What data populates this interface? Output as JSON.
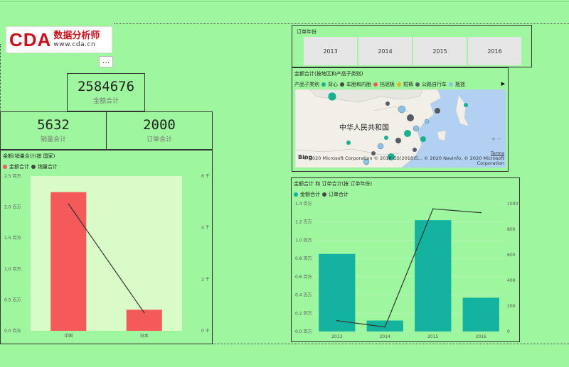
{
  "logo": {
    "brand": "CDA",
    "cn": "数据分析师",
    "url": "www.cda.cn"
  },
  "more_button": "...",
  "cards": {
    "total_amount": {
      "value": "2584676",
      "label": "金额合计"
    },
    "total_sales": {
      "value": "5632",
      "label": "销量合计"
    },
    "total_orders": {
      "value": "2000",
      "label": "订单合计"
    }
  },
  "slicer": {
    "title": "订单年份",
    "years": [
      "2013",
      "2014",
      "2015",
      "2016"
    ]
  },
  "map_visual": {
    "title": "金额合计(按地区和产品子类别)",
    "legend_label": "产品子类别",
    "legend_items": [
      {
        "name": "背心",
        "color": "#1aaf8f"
      },
      {
        "name": "车胎和内胎",
        "color": "#444444"
      },
      {
        "name": "挡泥板",
        "color": "#f05a5a"
      },
      {
        "name": "短裤",
        "color": "#e0b41a"
      },
      {
        "name": "公路自行车",
        "color": "#555a63"
      },
      {
        "name": "瓶篮",
        "color": "#87c3e8"
      }
    ],
    "map_label": "中华人民共和国",
    "provider": "Bing",
    "copyright": "© 2020 Microsoft Corporation   © 2018 GS(2018)5... © 2020 NavInfo, © 2020 Microsoft",
    "copyright2": "Corporation",
    "terms": "Terms",
    "zoom": "+ −"
  },
  "left_chart": {
    "title": "金额(销量合计(按 国家)",
    "legend": [
      {
        "name": "金额合计",
        "color": "#f55a5a"
      },
      {
        "name": "销量合计",
        "color": "#444444"
      }
    ]
  },
  "right_chart": {
    "title": "金额合计 和 订单合计(按 订单年份)",
    "legend": [
      {
        "name": "金额合计",
        "color": "#14b3a0"
      },
      {
        "name": "订单合计",
        "color": "#444444"
      }
    ]
  },
  "chart_data": [
    {
      "type": "bar",
      "categories": [
        "中国",
        "日本"
      ],
      "series": [
        {
          "name": "金额合计",
          "type": "bar",
          "values": [
            2240000,
            340000
          ]
        },
        {
          "name": "销量合计",
          "type": "line",
          "values": [
            4920,
            700
          ]
        }
      ],
      "y_left": {
        "ticks": [
          "2.5 百万",
          "2.0 百万",
          "1.5 百万",
          "1.0 百万",
          "0.5 百万",
          "0.0 百万"
        ],
        "range": [
          0,
          2500000
        ]
      },
      "y_right": {
        "ticks": [
          "6 千",
          "4 千",
          "2 千",
          "0 千"
        ],
        "range": [
          0,
          6000
        ]
      },
      "title": "金额(销量合计(按 国家)"
    },
    {
      "type": "bar",
      "categories": [
        "2013",
        "2014",
        "2015",
        "2016"
      ],
      "series": [
        {
          "name": "金额合计",
          "type": "bar",
          "values": [
            850000,
            120000,
            1220000,
            370000
          ]
        },
        {
          "name": "订单合计",
          "type": "line",
          "values": [
            85,
            35,
            960,
            930
          ]
        }
      ],
      "y_left": {
        "ticks": [
          "1.4 百万",
          "1.2 百万",
          "1.0 百万",
          "0.8 百万",
          "0.6 百万",
          "0.4 百万",
          "0.2 百万",
          "0.0 百万"
        ],
        "range": [
          0,
          1400000
        ]
      },
      "y_right": {
        "ticks": [
          "1000",
          "800",
          "600",
          "400",
          "200",
          "0"
        ],
        "range": [
          0,
          1000
        ]
      },
      "title": "金额合计 和 订单合计(按 订单年份)"
    }
  ]
}
